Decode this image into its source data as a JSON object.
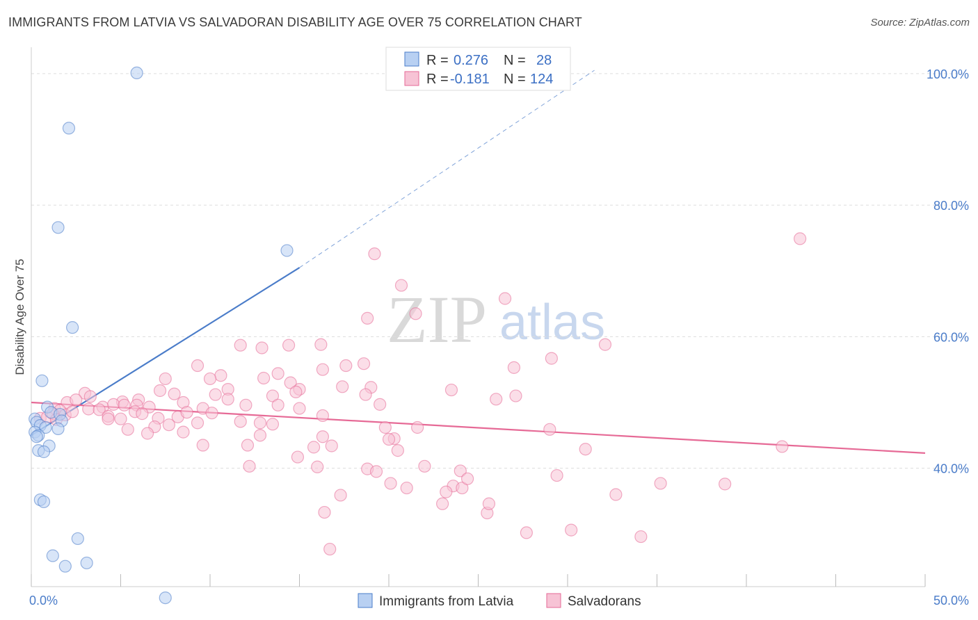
{
  "title": "IMMIGRANTS FROM LATVIA VS SALVADORAN DISABILITY AGE OVER 75 CORRELATION CHART",
  "source": "Source: ZipAtlas.com",
  "watermark": {
    "part1": "ZIP",
    "part2": "atlas"
  },
  "colors": {
    "blue": "#4a7cc9",
    "blue_fill": "#b8d0f2",
    "pink": "#e66a96",
    "pink_fill": "#f7c3d5",
    "grid": "#dddddd"
  },
  "legend": {
    "r_label": "R =",
    "n_label": "N =",
    "rows": [
      {
        "r": "0.276",
        "n": "28"
      },
      {
        "r": "-0.181",
        "n": "124"
      }
    ]
  },
  "chart_data": {
    "type": "scatter",
    "ylabel": "Disability Age Over 75",
    "xlim": [
      0,
      50
    ],
    "ylim": [
      22,
      104
    ],
    "y_ticks": [
      {
        "value": 100,
        "label": "100.0%"
      },
      {
        "value": 80,
        "label": "80.0%"
      },
      {
        "value": 60,
        "label": "60.0%"
      },
      {
        "value": 40,
        "label": "40.0%"
      }
    ],
    "x_tick_labels": [
      {
        "value": 0,
        "label": "0.0%"
      },
      {
        "value": 50,
        "label": "50.0%"
      }
    ],
    "series": [
      {
        "name": "Immigrants from Latvia",
        "trend": {
          "x0": 0,
          "y0": 45.0,
          "x1": 15.0,
          "y1": 70.5,
          "dash_x1": 31.5,
          "dash_y1": 100.5
        },
        "points": [
          [
            5.9,
            100.1
          ],
          [
            2.1,
            91.7
          ],
          [
            1.5,
            76.6
          ],
          [
            14.3,
            73.1
          ],
          [
            2.3,
            61.4
          ],
          [
            0.6,
            53.3
          ],
          [
            0.2,
            47.5
          ],
          [
            0.3,
            47.0
          ],
          [
            0.9,
            49.3
          ],
          [
            1.1,
            48.5
          ],
          [
            1.6,
            48.2
          ],
          [
            1.7,
            47.2
          ],
          [
            0.5,
            46.5
          ],
          [
            0.8,
            46.2
          ],
          [
            1.5,
            46.0
          ],
          [
            0.2,
            45.5
          ],
          [
            0.4,
            45.0
          ],
          [
            0.3,
            44.8
          ],
          [
            1.0,
            43.4
          ],
          [
            0.4,
            42.7
          ],
          [
            0.7,
            42.5
          ],
          [
            0.5,
            35.2
          ],
          [
            0.7,
            34.9
          ],
          [
            2.6,
            29.3
          ],
          [
            1.2,
            26.7
          ],
          [
            1.9,
            25.1
          ],
          [
            3.1,
            25.6
          ],
          [
            7.5,
            20.3
          ]
        ]
      },
      {
        "name": "Salvadorans",
        "trend": {
          "x0": 0,
          "y0": 50.0,
          "x1": 50,
          "y1": 42.3
        },
        "points": [
          [
            43.0,
            74.9
          ],
          [
            19.2,
            72.6
          ],
          [
            20.7,
            67.8
          ],
          [
            26.5,
            65.8
          ],
          [
            21.5,
            63.5
          ],
          [
            18.8,
            62.8
          ],
          [
            32.1,
            58.8
          ],
          [
            11.7,
            58.7
          ],
          [
            12.9,
            58.3
          ],
          [
            14.4,
            58.7
          ],
          [
            29.1,
            56.7
          ],
          [
            17.6,
            55.6
          ],
          [
            18.6,
            55.9
          ],
          [
            9.3,
            55.6
          ],
          [
            10.6,
            54.1
          ],
          [
            13.8,
            54.4
          ],
          [
            16.3,
            55.0
          ],
          [
            27.0,
            55.3
          ],
          [
            7.5,
            53.6
          ],
          [
            13.0,
            53.7
          ],
          [
            10.0,
            53.6
          ],
          [
            14.5,
            53.0
          ],
          [
            11.0,
            52.0
          ],
          [
            17.4,
            52.4
          ],
          [
            19.0,
            52.3
          ],
          [
            15.0,
            52.0
          ],
          [
            14.8,
            51.6
          ],
          [
            23.5,
            51.9
          ],
          [
            27.1,
            51.0
          ],
          [
            10.3,
            51.2
          ],
          [
            11.0,
            50.5
          ],
          [
            13.5,
            51.0
          ],
          [
            18.7,
            51.2
          ],
          [
            6.0,
            50.4
          ],
          [
            3.0,
            51.4
          ],
          [
            5.1,
            50.1
          ],
          [
            7.2,
            51.8
          ],
          [
            8.0,
            51.3
          ],
          [
            8.5,
            50.0
          ],
          [
            9.6,
            49.1
          ],
          [
            12.0,
            49.6
          ],
          [
            13.8,
            49.6
          ],
          [
            15.0,
            49.1
          ],
          [
            19.5,
            49.7
          ],
          [
            26.0,
            50.5
          ],
          [
            2.0,
            50.0
          ],
          [
            2.5,
            50.4
          ],
          [
            3.3,
            50.9
          ],
          [
            4.0,
            49.3
          ],
          [
            4.6,
            49.7
          ],
          [
            5.2,
            49.6
          ],
          [
            5.9,
            49.6
          ],
          [
            6.6,
            49.3
          ],
          [
            7.1,
            47.6
          ],
          [
            8.2,
            47.8
          ],
          [
            8.7,
            48.5
          ],
          [
            10.1,
            48.4
          ],
          [
            3.2,
            49.0
          ],
          [
            3.8,
            48.9
          ],
          [
            4.3,
            47.9
          ],
          [
            5.0,
            47.5
          ],
          [
            5.8,
            48.6
          ],
          [
            6.2,
            48.3
          ],
          [
            6.9,
            46.3
          ],
          [
            7.7,
            46.6
          ],
          [
            9.3,
            46.9
          ],
          [
            11.7,
            47.1
          ],
          [
            12.8,
            46.9
          ],
          [
            13.5,
            46.7
          ],
          [
            1.3,
            49.1
          ],
          [
            1.6,
            48.8
          ],
          [
            1.9,
            48.1
          ],
          [
            2.3,
            48.6
          ],
          [
            0.5,
            47.6
          ],
          [
            0.9,
            47.8
          ],
          [
            1.2,
            48.3
          ],
          [
            1.4,
            47.4
          ],
          [
            4.3,
            47.5
          ],
          [
            5.4,
            45.9
          ],
          [
            6.5,
            45.3
          ],
          [
            8.5,
            45.5
          ],
          [
            12.8,
            45.0
          ],
          [
            16.3,
            44.8
          ],
          [
            19.8,
            46.2
          ],
          [
            20.3,
            44.5
          ],
          [
            21.6,
            46.2
          ],
          [
            29.0,
            45.9
          ],
          [
            9.6,
            43.5
          ],
          [
            12.1,
            43.5
          ],
          [
            15.8,
            43.2
          ],
          [
            16.8,
            43.4
          ],
          [
            20.0,
            44.4
          ],
          [
            20.5,
            42.7
          ],
          [
            31.0,
            42.9
          ],
          [
            42.0,
            43.3
          ],
          [
            14.9,
            41.7
          ],
          [
            16.0,
            40.2
          ],
          [
            12.2,
            40.3
          ],
          [
            18.8,
            39.9
          ],
          [
            22.0,
            40.3
          ],
          [
            24.0,
            39.6
          ],
          [
            19.3,
            39.5
          ],
          [
            29.4,
            38.9
          ],
          [
            23.6,
            37.3
          ],
          [
            35.2,
            37.7
          ],
          [
            38.8,
            37.6
          ],
          [
            20.1,
            37.7
          ],
          [
            21.0,
            37.0
          ],
          [
            23.2,
            36.4
          ],
          [
            23.0,
            34.6
          ],
          [
            17.3,
            35.9
          ],
          [
            32.7,
            36.0
          ],
          [
            25.5,
            33.2
          ],
          [
            16.4,
            33.3
          ],
          [
            27.7,
            30.2
          ],
          [
            30.2,
            30.6
          ],
          [
            34.1,
            29.6
          ],
          [
            16.7,
            27.7
          ],
          [
            25.6,
            34.6
          ],
          [
            24.1,
            37.0
          ],
          [
            24.4,
            38.4
          ],
          [
            16.2,
            58.8
          ],
          [
            16.3,
            48.0
          ]
        ]
      }
    ]
  }
}
